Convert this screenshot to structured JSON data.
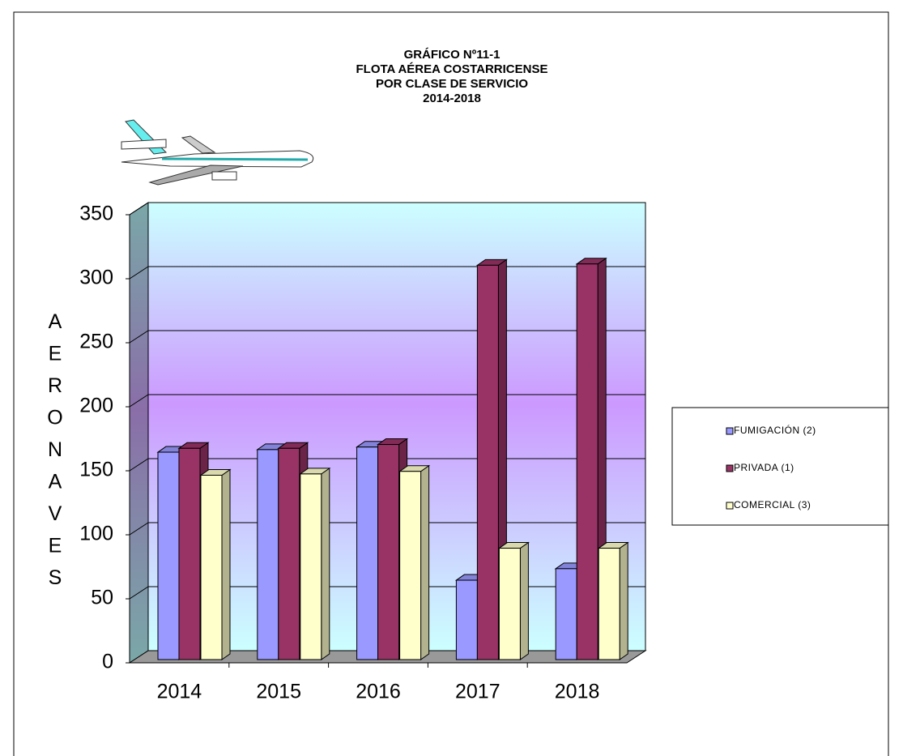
{
  "chart_data": {
    "type": "bar3d",
    "title": [
      "GRÁFICO Nº11-1",
      "FLOTA AÉREA COSTARRICENSE",
      "POR CLASE DE SERVICIO",
      "2014-2018"
    ],
    "y_label": "AERONAVES",
    "categories": [
      "2014",
      "2015",
      "2016",
      "2017",
      "2018"
    ],
    "series": [
      {
        "name": "FUMIGACIÓN (2)",
        "color": "#9999ff",
        "values": [
          162,
          164,
          166,
          62,
          71
        ]
      },
      {
        "name": "PRIVADA (1)",
        "color": "#993366",
        "values": [
          165,
          165,
          168,
          308,
          309
        ]
      },
      {
        "name": "COMERCIAL (3)",
        "color": "#ffffcc",
        "values": [
          144,
          145,
          147,
          87,
          87
        ]
      }
    ],
    "ylim": [
      0,
      350
    ],
    "yticks": [
      0,
      50,
      100,
      150,
      200,
      250,
      300,
      350
    ],
    "grid": true,
    "legend": "right"
  }
}
